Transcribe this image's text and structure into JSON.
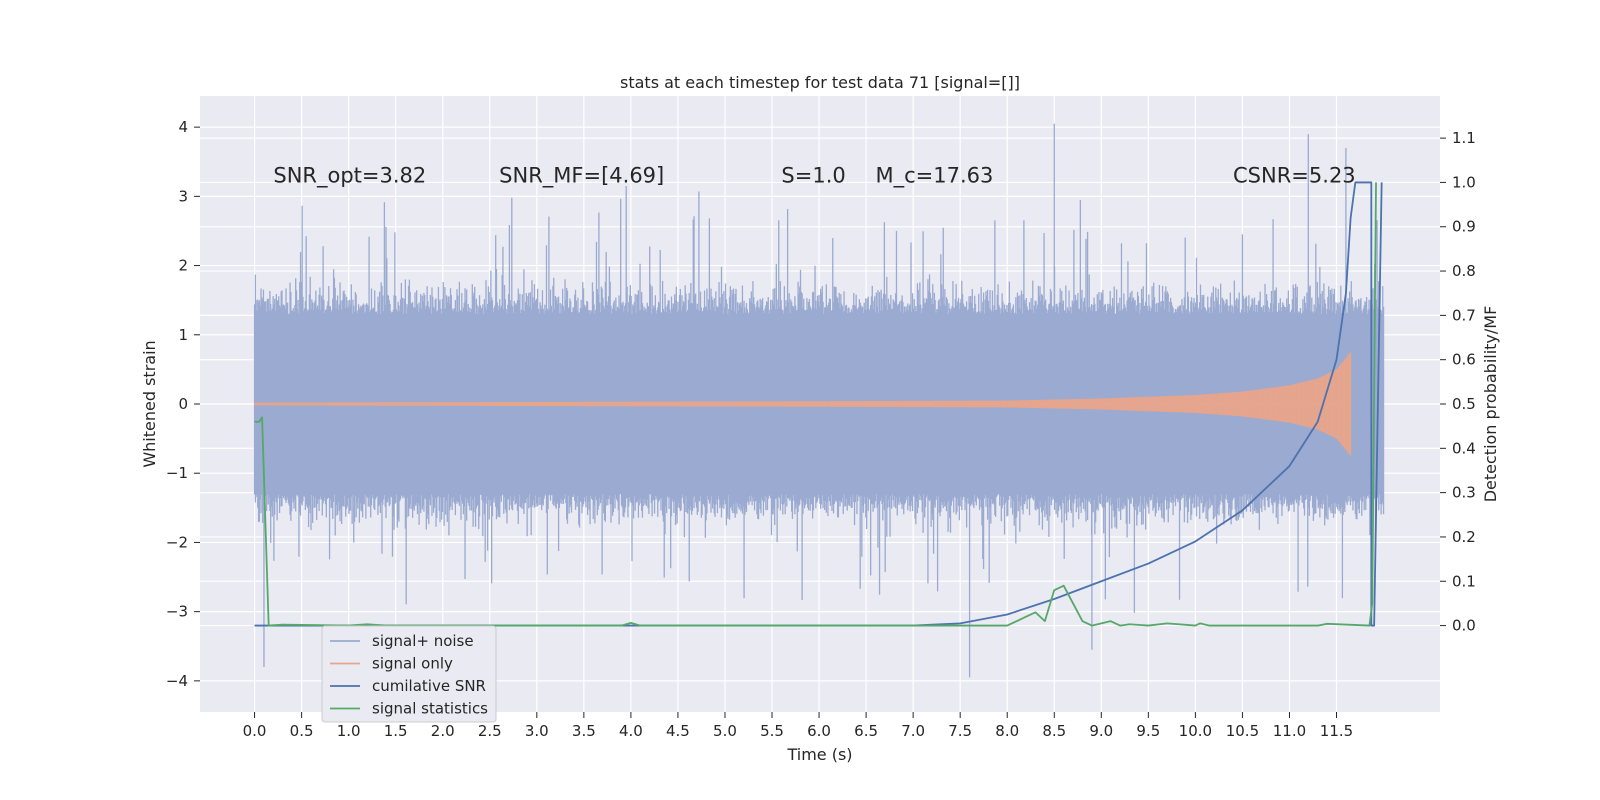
{
  "chart_data": {
    "type": "line",
    "title": "stats at each timestep for test data 71 [signal=[]]",
    "xlabel": "Time (s)",
    "ylabel_left": "Whitened strain",
    "ylabel_right": "Detection probability/MF",
    "xlim": [
      -0.58,
      12.6
    ],
    "ylim_left": [
      -4.45,
      4.45
    ],
    "ylim_right": [
      -0.195,
      1.195
    ],
    "grid": true,
    "legend_position": "lower-left",
    "x_ticks": [
      0.0,
      0.5,
      1.0,
      1.5,
      2.0,
      2.5,
      3.0,
      3.5,
      4.0,
      4.5,
      5.0,
      5.5,
      6.0,
      6.5,
      7.0,
      7.5,
      8.0,
      8.5,
      9.0,
      9.5,
      10.0,
      10.5,
      11.0,
      11.5
    ],
    "x_tick_labels": [
      "0.0",
      "0.5",
      "1.0",
      "1.5",
      "2.0",
      "2.5",
      "3.0",
      "3.5",
      "4.0",
      "4.5",
      "5.0",
      "5.5",
      "6.0",
      "6.5",
      "7.0",
      "7.5",
      "8.0",
      "8.5",
      "9.0",
      "9.5",
      "10.0",
      "10.5",
      "11.0",
      "11.5"
    ],
    "y_left_ticks": [
      -4,
      -3,
      -2,
      -1,
      0,
      1,
      2,
      3,
      4
    ],
    "y_left_tick_labels": [
      "−4",
      "−3",
      "−2",
      "−1",
      "0",
      "1",
      "2",
      "3",
      "4"
    ],
    "y_right_ticks": [
      0.0,
      0.1,
      0.2,
      0.3,
      0.4,
      0.5,
      0.6,
      0.7,
      0.8,
      0.9,
      1.0,
      1.1
    ],
    "y_right_tick_labels": [
      "0.0",
      "0.1",
      "0.2",
      "0.3",
      "0.4",
      "0.5",
      "0.6",
      "0.7",
      "0.8",
      "0.9",
      "1.0",
      "1.1"
    ],
    "annotations": [
      {
        "id": "snr-opt",
        "x": 0.2,
        "y": 3.2,
        "text": "SNR_opt=3.82"
      },
      {
        "id": "snr-mf",
        "x": 2.6,
        "y": 3.2,
        "text": "SNR_MF=[4.69]"
      },
      {
        "id": "s-val",
        "x": 5.6,
        "y": 3.2,
        "text": "S=1.0"
      },
      {
        "id": "mc-val",
        "x": 6.6,
        "y": 3.2,
        "text": "M_c=17.63"
      },
      {
        "id": "csnr",
        "x": 10.4,
        "y": 3.2,
        "text": "CSNR=5.23"
      }
    ],
    "series": [
      {
        "name": "signal+ noise",
        "color": "#9aaad0",
        "axis": "left",
        "description_range": [
          0.0,
          12.0
        ],
        "envelope": {
          "typical_max": 2.0,
          "typical_min": -2.0,
          "core_top": 1.3,
          "core_bottom": -1.3,
          "peak_max": 4.1,
          "peak_min": -3.9
        }
      },
      {
        "name": "signal only",
        "color": "#e6a58d",
        "axis": "left",
        "chirp_points": [
          [
            0.0,
            0.02
          ],
          [
            6.0,
            0.04
          ],
          [
            8.0,
            0.05
          ],
          [
            9.0,
            0.08
          ],
          [
            10.0,
            0.13
          ],
          [
            10.5,
            0.18
          ],
          [
            11.0,
            0.27
          ],
          [
            11.3,
            0.37
          ],
          [
            11.5,
            0.5
          ],
          [
            11.65,
            0.75
          ],
          [
            11.7,
            0.0
          ]
        ]
      },
      {
        "name": "cumilative SNR",
        "color": "#4c72b0",
        "axis": "right",
        "x": [
          0.0,
          7.0,
          7.5,
          8.0,
          8.5,
          9.0,
          9.5,
          10.0,
          10.5,
          11.0,
          11.3,
          11.5,
          11.6,
          11.65,
          11.7,
          11.85,
          11.87,
          11.87,
          11.9,
          11.98
        ],
        "y": [
          0.0,
          0.0,
          0.005,
          0.025,
          0.06,
          0.1,
          0.14,
          0.19,
          0.26,
          0.36,
          0.46,
          0.6,
          0.75,
          0.92,
          1.0,
          1.0,
          1.0,
          0.0,
          0.0,
          1.0
        ]
      },
      {
        "name": "signal statistics",
        "color": "#55a868",
        "axis": "right",
        "x": [
          0.0,
          0.05,
          0.08,
          0.12,
          0.15,
          0.3,
          1.0,
          1.2,
          1.4,
          3.9,
          4.0,
          4.1,
          7.0,
          8.0,
          8.2,
          8.3,
          8.4,
          8.5,
          8.6,
          8.7,
          8.8,
          8.9,
          9.0,
          9.1,
          9.2,
          9.3,
          9.5,
          9.7,
          10.0,
          10.05,
          10.15,
          10.3,
          11.3,
          11.4,
          11.85,
          11.88,
          11.92
        ],
        "y": [
          0.46,
          0.46,
          0.47,
          0.2,
          0.0,
          0.002,
          0.0,
          0.003,
          0.0,
          0.0,
          0.006,
          0.0,
          0.0,
          0.0,
          0.02,
          0.03,
          0.01,
          0.08,
          0.09,
          0.05,
          0.01,
          0.0,
          0.005,
          0.01,
          0.0,
          0.003,
          0.0,
          0.005,
          0.0,
          0.005,
          0.0,
          0.0,
          0.0,
          0.004,
          0.0,
          0.05,
          1.0
        ]
      }
    ]
  }
}
